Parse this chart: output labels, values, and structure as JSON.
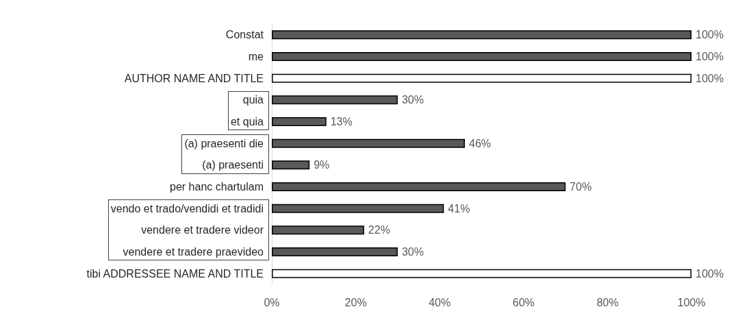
{
  "chart_data": {
    "type": "bar",
    "orientation": "horizontal",
    "categories": [
      "Constat",
      "me",
      "AUTHOR NAME AND TITLE",
      "quia",
      "et quia",
      "(a) praesenti die",
      "(a) praesenti",
      "per hanc chartulam",
      "vendo et trado/vendidi et tradidi",
      "vendere et tradere videor",
      "vendere et tradere praevideo",
      "tibi ADDRESSEE NAME AND TITLE"
    ],
    "values": [
      100,
      100,
      100,
      30,
      13,
      46,
      9,
      70,
      41,
      22,
      30,
      100
    ],
    "value_labels": [
      "100%",
      "100%",
      "100%",
      "30%",
      "13%",
      "46%",
      "9%",
      "70%",
      "41%",
      "22%",
      "30%",
      "100%"
    ],
    "colors": [
      "#595959",
      "#595959",
      "#ffffff",
      "#595959",
      "#595959",
      "#595959",
      "#595959",
      "#595959",
      "#595959",
      "#595959",
      "#595959",
      "#ffffff"
    ],
    "xlim": [
      0,
      100
    ],
    "xticks": [
      {
        "value": 0,
        "label": "0%"
      },
      {
        "value": 20,
        "label": "20%"
      },
      {
        "value": 40,
        "label": "40%"
      },
      {
        "value": 60,
        "label": "60%"
      },
      {
        "value": 80,
        "label": "80%"
      },
      {
        "value": 100,
        "label": "100%"
      }
    ],
    "grid": false
  }
}
